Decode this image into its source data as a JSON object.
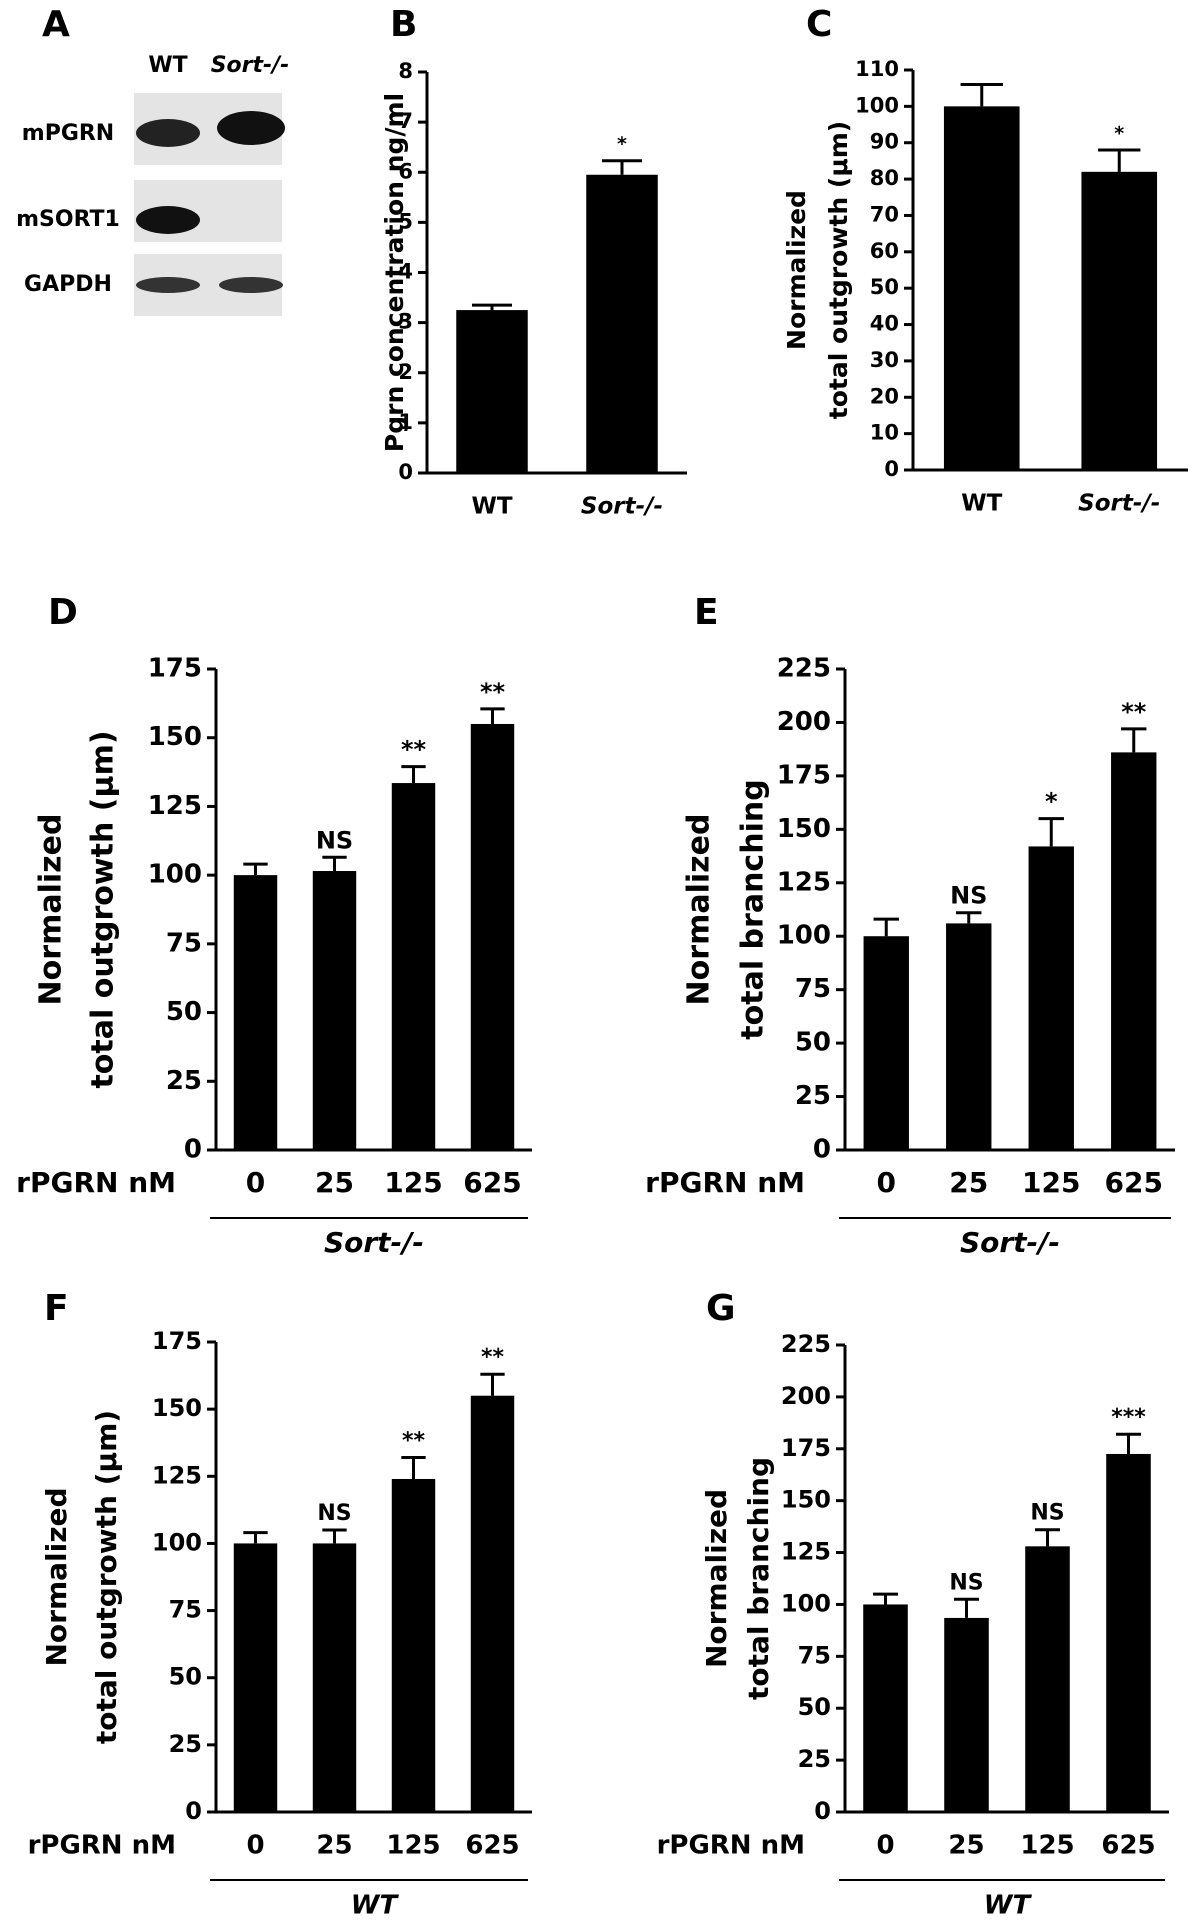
{
  "blot": {
    "panel": "A",
    "columns": [
      "WT",
      "Sort-/-"
    ],
    "rows": [
      "mPGRN",
      "mSORT1",
      "GAPDH"
    ]
  },
  "chart_data": [
    {
      "type": "bar",
      "panel": "B",
      "ylabel": [
        "Pgrn concentration ng/ml"
      ],
      "categories": [
        "WT",
        "Sort-/-"
      ],
      "values": [
        3.25,
        5.95
      ],
      "errors": [
        0.1,
        0.28
      ],
      "annotations": [
        null,
        "*"
      ],
      "color": "#000000",
      "ylim": [
        0,
        8
      ],
      "yticks": [
        0,
        1,
        2,
        3,
        4,
        5,
        6,
        7,
        8
      ]
    },
    {
      "type": "bar",
      "panel": "C",
      "ylabel": [
        "Normalized",
        "total outgrowth (μm)"
      ],
      "categories": [
        "WT",
        "Sort-/-"
      ],
      "values": [
        100,
        82
      ],
      "errors": [
        6,
        6
      ],
      "annotations": [
        null,
        "*"
      ],
      "color": "#000000",
      "ylim": [
        0,
        110
      ],
      "yticks": [
        0,
        10,
        20,
        30,
        40,
        50,
        60,
        70,
        80,
        90,
        100,
        110
      ]
    },
    {
      "type": "bar",
      "panel": "D",
      "ylabel": [
        "Normalized",
        "total outgrowth (μm)"
      ],
      "xlabel": "rPGRN nM",
      "group": "Sort-/-",
      "categories": [
        "0",
        "25",
        "125",
        "625"
      ],
      "values": [
        100,
        101.5,
        133.5,
        155
      ],
      "errors": [
        4,
        5,
        6,
        5.5
      ],
      "annotations": [
        null,
        "NS",
        "**",
        "**"
      ],
      "color": "#000000",
      "ylim": [
        0,
        175
      ],
      "yticks": [
        0,
        25,
        50,
        75,
        100,
        125,
        150,
        175
      ]
    },
    {
      "type": "bar",
      "panel": "E",
      "ylabel": [
        "Normalized",
        "total branching"
      ],
      "xlabel": "rPGRN nM",
      "group": "Sort-/-",
      "categories": [
        "0",
        "25",
        "125",
        "625"
      ],
      "values": [
        100,
        106,
        142,
        186
      ],
      "errors": [
        8,
        5,
        13,
        11
      ],
      "annotations": [
        null,
        "NS",
        "*",
        "**"
      ],
      "color": "#000000",
      "ylim": [
        0,
        225
      ],
      "yticks": [
        0,
        25,
        50,
        75,
        100,
        125,
        150,
        175,
        200,
        225
      ]
    },
    {
      "type": "bar",
      "panel": "F",
      "ylabel": [
        "Normalized",
        "total outgrowth (μm)"
      ],
      "xlabel": "rPGRN nM",
      "group": "WT",
      "categories": [
        "0",
        "25",
        "125",
        "625"
      ],
      "values": [
        100,
        100,
        124,
        155
      ],
      "errors": [
        4,
        5,
        8,
        8
      ],
      "annotations": [
        null,
        "NS",
        "**",
        "**"
      ],
      "color": "#000000",
      "ylim": [
        0,
        175
      ],
      "yticks": [
        0,
        25,
        50,
        75,
        100,
        125,
        150,
        175
      ]
    },
    {
      "type": "bar",
      "panel": "G",
      "ylabel": [
        "Normalized",
        "total branching"
      ],
      "xlabel": "rPGRN nM",
      "group": "WT",
      "categories": [
        "0",
        "25",
        "125",
        "625"
      ],
      "values": [
        100,
        93.5,
        128,
        172.5
      ],
      "errors": [
        5,
        9,
        8,
        9.5
      ],
      "annotations": [
        null,
        "NS",
        "NS",
        "***"
      ],
      "color": "#000000",
      "ylim": [
        0,
        225
      ],
      "yticks": [
        0,
        25,
        50,
        75,
        100,
        125,
        150,
        175,
        200,
        225
      ]
    }
  ]
}
